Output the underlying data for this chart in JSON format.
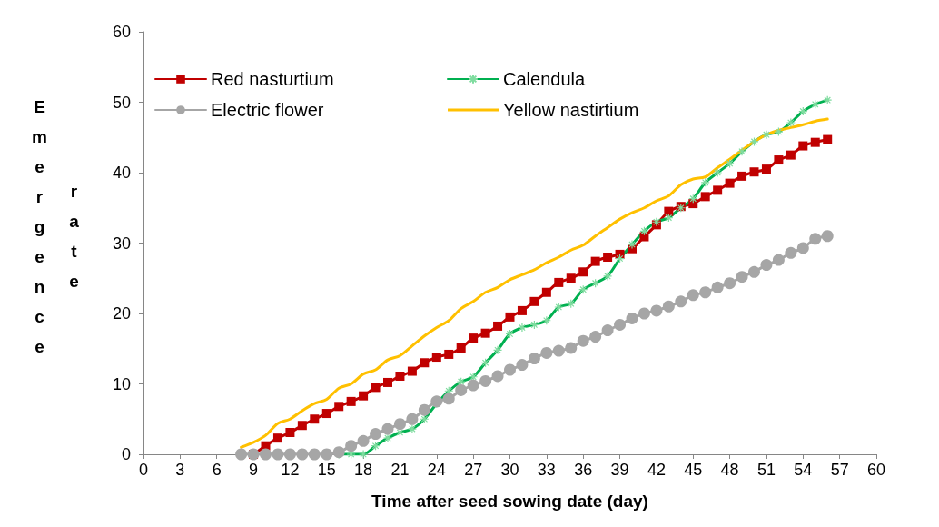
{
  "chart_data": {
    "type": "line",
    "xlabel": "Time after seed sowing date (day)",
    "ylabel": "Emergence rate",
    "x": [
      8,
      9,
      10,
      11,
      12,
      13,
      14,
      15,
      16,
      17,
      18,
      19,
      20,
      21,
      22,
      23,
      24,
      25,
      26,
      27,
      28,
      29,
      30,
      31,
      32,
      33,
      34,
      35,
      36,
      37,
      38,
      39,
      40,
      41,
      42,
      43,
      44,
      45,
      46,
      47,
      48,
      49,
      50,
      51,
      52,
      53,
      54,
      55,
      56
    ],
    "xlim": [
      0,
      60
    ],
    "xticks": [
      0,
      3,
      6,
      9,
      12,
      15,
      18,
      21,
      24,
      27,
      30,
      33,
      36,
      39,
      42,
      45,
      48,
      51,
      54,
      57,
      60
    ],
    "ylim": [
      0,
      60
    ],
    "yticks": [
      0,
      10,
      20,
      30,
      40,
      50,
      60
    ],
    "grid": false,
    "legend": "top left",
    "series": [
      {
        "name": "Red nasturtium",
        "color": "#c00000",
        "marker": "square",
        "values": [
          null,
          0,
          1.2,
          2.3,
          3.1,
          4.1,
          5,
          5.8,
          6.8,
          7.5,
          8.3,
          9.5,
          10.2,
          11.1,
          11.8,
          13,
          13.8,
          14.2,
          15.1,
          16.5,
          17.2,
          18.2,
          19.5,
          20.4,
          21.7,
          23,
          24.4,
          25,
          25.9,
          27.4,
          28,
          28.4,
          29.2,
          30.9,
          32.6,
          34.5,
          35.2,
          35.6,
          36.6,
          37.5,
          38.5,
          39.5,
          40.1,
          40.5,
          41.8,
          42.5,
          43.8,
          44.3,
          44.7
        ]
      },
      {
        "name": "Calendula",
        "color": "#00b050",
        "marker": "cross",
        "values": [
          null,
          null,
          null,
          null,
          null,
          null,
          null,
          null,
          0,
          0,
          0,
          1.2,
          2.3,
          3.1,
          3.6,
          5,
          7.2,
          9,
          10.3,
          11,
          13,
          14.8,
          17.1,
          18,
          18.4,
          19,
          20.9,
          21.4,
          23.4,
          24.3,
          25.3,
          27.8,
          29.8,
          31.7,
          33,
          33.6,
          35,
          36.3,
          38.6,
          40,
          41.3,
          43,
          44.4,
          45.4,
          45.8,
          47.1,
          48.7,
          49.7,
          50.3
        ]
      },
      {
        "name": "Electric flower",
        "color": "#a6a6a6",
        "marker": "circle",
        "values": [
          0,
          0,
          0,
          0,
          0,
          0,
          0,
          0,
          0.3,
          1.2,
          1.9,
          2.9,
          3.6,
          4.3,
          5,
          6.3,
          7.5,
          7.9,
          9.1,
          9.8,
          10.4,
          11.1,
          12,
          12.7,
          13.6,
          14.4,
          14.7,
          15.1,
          16.1,
          16.7,
          17.6,
          18.4,
          19.3,
          20,
          20.4,
          21,
          21.7,
          22.6,
          23,
          23.7,
          24.3,
          25.2,
          25.9,
          26.9,
          27.6,
          28.6,
          29.3,
          30.6,
          31
        ]
      },
      {
        "name": "Yellow nastirtium",
        "color": "#ffc000",
        "marker": "none",
        "values": [
          1,
          1.7,
          2.7,
          4.4,
          5,
          6.2,
          7.2,
          7.8,
          9.4,
          10,
          11.4,
          12,
          13.4,
          14,
          15.4,
          16.8,
          18,
          19,
          20.7,
          21.7,
          23,
          23.7,
          24.8,
          25.5,
          26.2,
          27.2,
          28,
          29,
          29.7,
          31,
          32.2,
          33.4,
          34.3,
          35,
          36,
          36.7,
          38.3,
          39.1,
          39.4,
          40.7,
          41.9,
          43.2,
          44.4,
          45.4,
          46,
          46.4,
          46.8,
          47.3,
          47.6
        ]
      }
    ]
  }
}
